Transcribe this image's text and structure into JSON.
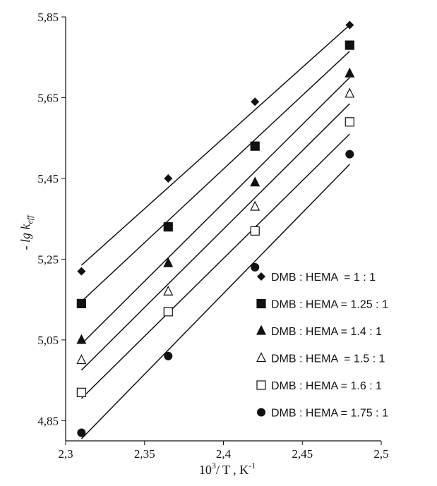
{
  "chart_data": {
    "type": "scatter",
    "title": "",
    "xlabel_main": "10",
    "xlabel_sup": "3",
    "xlabel_mid": "/ T , K",
    "xlabel_sup2": "-1",
    "ylabel_main": "- lg k",
    "ylabel_sub": "eff",
    "xlim": [
      2.3,
      2.5
    ],
    "ylim": [
      4.8,
      5.85
    ],
    "x_ticks": [
      2.3,
      2.35,
      2.4,
      2.45,
      2.5
    ],
    "x_tick_labels": [
      "2,3",
      "2,35",
      "2,4",
      "2,45",
      "2,5"
    ],
    "y_ticks": [
      4.85,
      5.05,
      5.25,
      5.45,
      5.65,
      5.85
    ],
    "y_tick_labels": [
      "4,85",
      "5,05",
      "5,25",
      "5,45",
      "5,65",
      "5,85"
    ],
    "grid": false,
    "legend_position": "bottom-right",
    "series": [
      {
        "name": "DMB : HEMA  = 1 : 1",
        "marker": "diamond-filled",
        "x": [
          2.31,
          2.365,
          2.42,
          2.48
        ],
        "y": [
          5.22,
          5.45,
          5.64,
          5.83
        ],
        "fit": [
          [
            2.31,
            5.235
          ],
          [
            2.48,
            5.83
          ]
        ]
      },
      {
        "name": "DMB : HEMA = 1.25 : 1",
        "marker": "square-filled",
        "x": [
          2.31,
          2.365,
          2.42,
          2.48
        ],
        "y": [
          5.14,
          5.33,
          5.53,
          5.78
        ],
        "fit": [
          [
            2.31,
            5.145
          ],
          [
            2.48,
            5.765
          ]
        ]
      },
      {
        "name": "DMB : HEMA = 1.4 : 1",
        "marker": "triangle-filled",
        "x": [
          2.31,
          2.365,
          2.42,
          2.48
        ],
        "y": [
          5.05,
          5.24,
          5.44,
          5.71
        ],
        "fit": [
          [
            2.31,
            5.04
          ],
          [
            2.48,
            5.7
          ]
        ]
      },
      {
        "name": "DMB : HEMA  = 1.5 : 1",
        "marker": "triangle-open",
        "x": [
          2.31,
          2.365,
          2.42,
          2.48
        ],
        "y": [
          5.0,
          5.17,
          5.38,
          5.66
        ],
        "fit": [
          [
            2.31,
            4.975
          ],
          [
            2.48,
            5.635
          ]
        ]
      },
      {
        "name": "DMB : HEMA = 1.6 : 1",
        "marker": "square-open",
        "x": [
          2.31,
          2.365,
          2.42,
          2.48
        ],
        "y": [
          4.92,
          5.12,
          5.32,
          5.59
        ],
        "fit": [
          [
            2.31,
            4.905
          ],
          [
            2.48,
            5.56
          ]
        ]
      },
      {
        "name": "DMB : HEMA = 1.75 : 1",
        "marker": "circle-filled",
        "x": [
          2.31,
          2.365,
          2.42,
          2.48
        ],
        "y": [
          4.82,
          5.01,
          5.23,
          5.51
        ],
        "fit": [
          [
            2.31,
            4.805
          ],
          [
            2.48,
            5.485
          ]
        ]
      }
    ]
  },
  "colors": {
    "ink": "#111111",
    "background": "#ffffff"
  }
}
